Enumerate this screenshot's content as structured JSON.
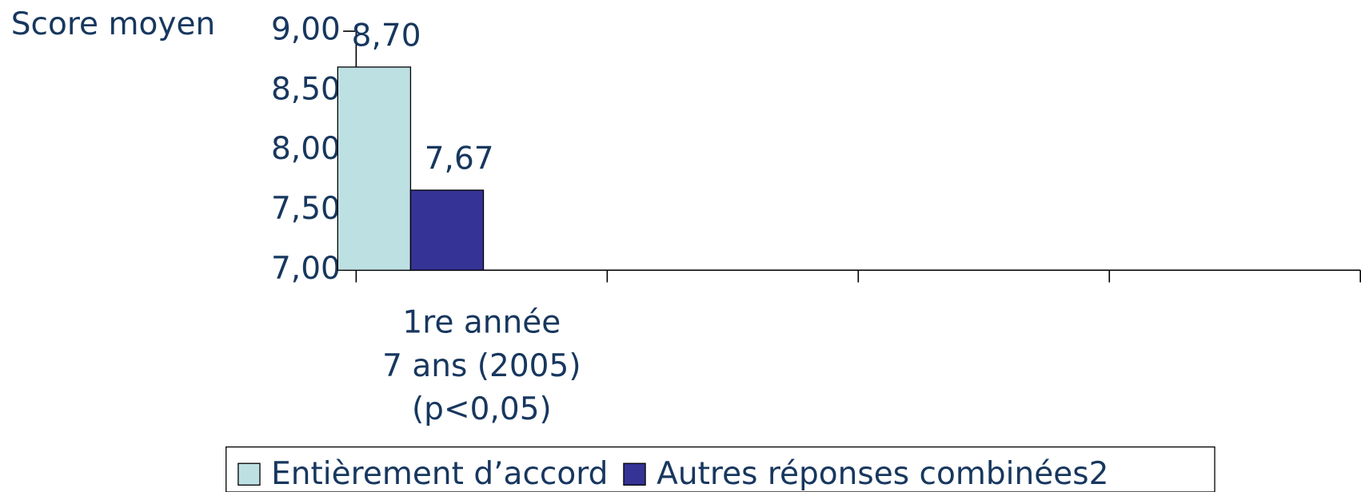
{
  "chart_data": {
    "type": "bar",
    "y_axis_label": "Score moyen",
    "categories": [
      "1re année\n7 ans (2005)\n(p<0,05)",
      null,
      null,
      null
    ],
    "series": [
      {
        "name": "Entièrement d’accord",
        "color": "#bde0e3",
        "values": [
          8.7,
          null,
          null,
          null
        ],
        "value_labels": [
          "8,70",
          null,
          null,
          null
        ]
      },
      {
        "name": "Autres réponses combinées2",
        "color": "#363396",
        "values": [
          7.67,
          null,
          null,
          null
        ],
        "value_labels": [
          "7,67",
          null,
          null,
          null
        ]
      }
    ],
    "ylim": [
      7,
      9
    ],
    "yticks": [
      {
        "value": 7,
        "label": "7,00"
      },
      {
        "value": 7.5,
        "label": "7,50"
      },
      {
        "value": 8,
        "label": "8,00"
      },
      {
        "value": 8.5,
        "label": "8,50"
      },
      {
        "value": 9,
        "label": "9,00"
      }
    ],
    "legend": "bottom"
  }
}
